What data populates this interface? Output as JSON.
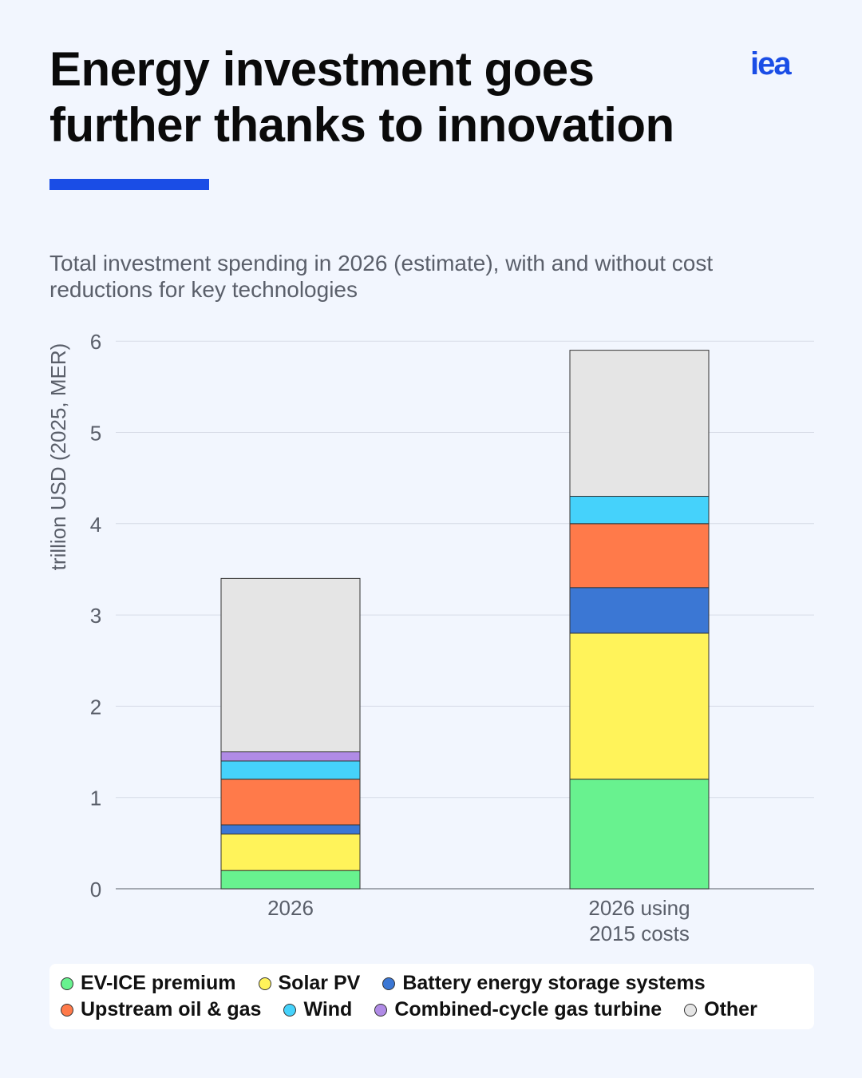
{
  "header": {
    "title_line1": "Energy investment goes",
    "title_line2": "further thanks to innovation",
    "logo_text": "iea",
    "accent_color": "#1a4de6"
  },
  "chart_data": {
    "type": "bar",
    "stacked": true,
    "title": "Total investment spending in 2026 (estimate), with and without cost reductions for key technologies",
    "subtitle_line1": "Total investment spending in 2026 (estimate), with and without cost",
    "subtitle_line2": "reductions for key technologies",
    "ylabel": "trillion USD (2025, MER)",
    "ylim": [
      0,
      6
    ],
    "yticks": [
      0,
      1,
      2,
      3,
      4,
      5,
      6
    ],
    "grid": true,
    "legend_position": "bottom",
    "categories": [
      [
        "2026"
      ],
      [
        "2026 using",
        "2015 costs"
      ]
    ],
    "series": [
      {
        "name": "EV-ICE premium",
        "color": "#68f28f",
        "values": [
          0.2,
          1.2
        ]
      },
      {
        "name": "Solar PV",
        "color": "#fff35a",
        "values": [
          0.4,
          1.6
        ]
      },
      {
        "name": "Battery energy storage systems",
        "color": "#3b77d4",
        "values": [
          0.1,
          0.5
        ]
      },
      {
        "name": "Upstream oil & gas",
        "color": "#ff7a4a",
        "values": [
          0.5,
          0.7
        ]
      },
      {
        "name": "Wind",
        "color": "#45d2fb",
        "values": [
          0.2,
          0.3
        ]
      },
      {
        "name": "Combined-cycle gas turbine",
        "color": "#b08be6",
        "values": [
          0.1,
          0.0
        ]
      },
      {
        "name": "Other",
        "color": "#e5e5e5",
        "values": [
          1.9,
          1.6
        ]
      }
    ]
  }
}
